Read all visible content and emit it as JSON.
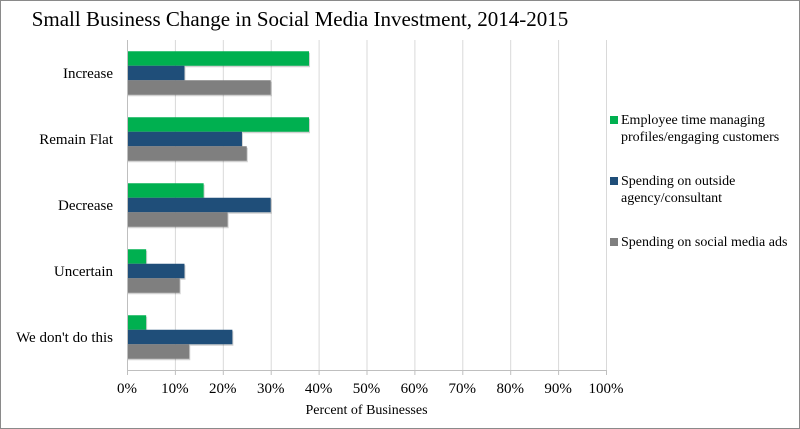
{
  "chart_data": {
    "type": "bar",
    "orientation": "horizontal",
    "title": "Small Business Change in Social Media Investment, 2014-2015",
    "xlabel": "Percent of Businesses",
    "ylabel": "",
    "categories": [
      "Increase",
      "Remain Flat",
      "Decrease",
      "Uncertain",
      "We don't do this"
    ],
    "series": [
      {
        "name": "Employee time managing profiles/engaging customers",
        "color": "#00b050",
        "values": [
          38,
          38,
          16,
          4,
          4
        ]
      },
      {
        "name": "Spending on outside agency/consultant",
        "color": "#1f4e79",
        "values": [
          12,
          24,
          30,
          12,
          22
        ]
      },
      {
        "name": "Spending on social media ads",
        "color": "#7f7f7f",
        "values": [
          30,
          25,
          21,
          11,
          13
        ]
      }
    ],
    "xlim": [
      0,
      100
    ],
    "xticks": [
      0,
      10,
      20,
      30,
      40,
      50,
      60,
      70,
      80,
      90,
      100
    ],
    "xtick_labels": [
      "0%",
      "10%",
      "20%",
      "30%",
      "40%",
      "50%",
      "60%",
      "70%",
      "80%",
      "90%",
      "100%"
    ],
    "grid": true,
    "legend_position": "right"
  }
}
